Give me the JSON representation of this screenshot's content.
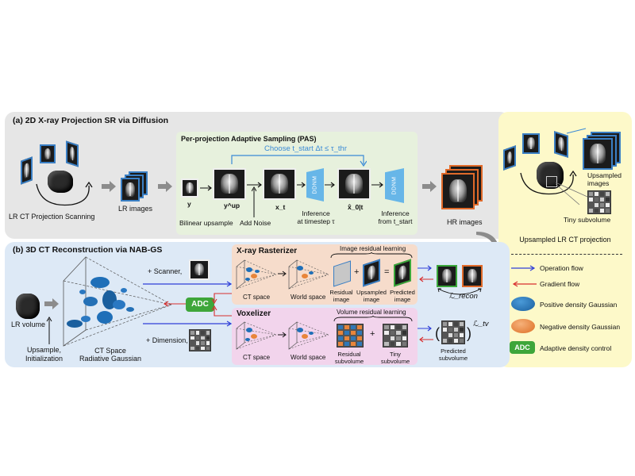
{
  "panel_a": {
    "title": "(a) 2D X-ray Projection SR via Diffusion",
    "lr_scan_label": "LR CT Projection Scanning",
    "lr_images_label": "LR images",
    "pas_title": "Per-projection Adaptive Sampling (PAS)",
    "choose_label": "Choose t_start  Δt ≤ τ_thr",
    "y_label": "y",
    "yup_label": "y^up",
    "xt_label": "x_t",
    "x0_label": "x̂_0|t",
    "ddnm_label": "DDNM",
    "bilinear_label": "Bilinear upsample",
    "noise_label": "Add Noise",
    "inference1_line1": "Inference",
    "inference1_line2": "at timestep τ",
    "inference2_line1": "Inference",
    "inference2_line2": "from t_start",
    "hr_label": "HR images"
  },
  "panel_right": {
    "upsampled_images_line1": "Upsampled",
    "upsampled_images_line2": "images",
    "tiny_subvolume": "Tiny subvolume",
    "caption": "Upsampled LR CT projection",
    "legend": [
      {
        "label": "Operation flow",
        "color": "#2f3ed8"
      },
      {
        "label": "Gradient flow",
        "color": "#d82f2f"
      },
      {
        "label": "Positive density Gaussian",
        "color": "#1f6fb8"
      },
      {
        "label": "Negative density Gaussian",
        "color": "#e8853a"
      },
      {
        "label": "Adaptive density control",
        "color": "#3ea63a"
      }
    ],
    "adc_badge": "ADC"
  },
  "panel_b": {
    "title": "(b) 3D CT Reconstruction via NAB-GS",
    "lr_volume": "LR volume",
    "upsample_line1": "Upsample,",
    "upsample_line2": "Initialization",
    "ct_space_line1": "CT Space",
    "ct_space_line2": "Radiative Gaussian",
    "scanner": "+ Scanner,",
    "dimension": "+ Dimension,",
    "adc": "ADC",
    "xray_rasterizer": "X-ray Rasterizer",
    "image_residual": "Image residual learning",
    "ct_space": "CT space",
    "world_space": "World space",
    "residual_image_line1": "Residual",
    "residual_image_line2": "image",
    "upsampled_image_line1": "Upsampled",
    "upsampled_image_line2": "image",
    "predicted_image_line1": "Predicted",
    "predicted_image_line2": "image",
    "loss_recon": "ℒ_recon",
    "voxelizer": "Voxelizer",
    "volume_residual": "Volume residual learning",
    "residual_subvol_line1": "Residual",
    "residual_subvol_line2": "subvolume",
    "tiny_subvol_line1": "Tiny",
    "tiny_subvol_line2": "subvolume",
    "predicted_subvol_line1": "Predicted",
    "predicted_subvol_line2": "subvolume",
    "loss_tv": "ℒ_tv",
    "plus": "+",
    "equals": "="
  }
}
